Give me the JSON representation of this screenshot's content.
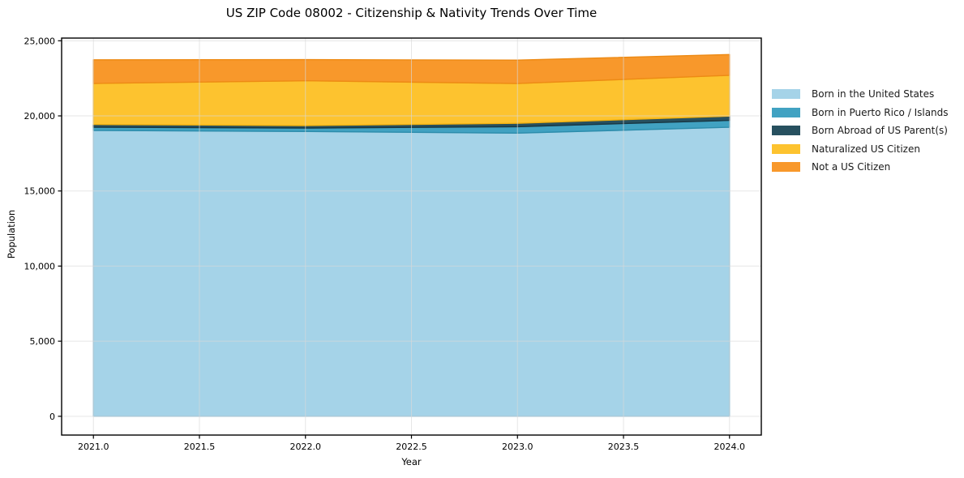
{
  "title": "US ZIP Code 08002 - Citizenship & Nativity Trends Over Time",
  "chart_data": {
    "type": "area",
    "stacked": true,
    "title": "US ZIP Code 08002 - Citizenship & Nativity Trends Over Time",
    "xlabel": "Year",
    "ylabel": "Population",
    "x": [
      2021,
      2022,
      2023,
      2024
    ],
    "series": [
      {
        "name": "Born in the United States",
        "color": "#a5d3e8",
        "edge": "#84bcd8",
        "values": [
          19030,
          18960,
          18850,
          19245
        ]
      },
      {
        "name": "Born in Puerto Rico / Islands",
        "color": "#41a2c2",
        "edge": "#2c8cab",
        "values": [
          215,
          230,
          430,
          455
        ]
      },
      {
        "name": "Born Abroad of US Parent(s)",
        "color": "#27505f",
        "edge": "#183743",
        "values": [
          185,
          165,
          230,
          285
        ]
      },
      {
        "name": "Naturalized US Citizen",
        "color": "#fdc32f",
        "edge": "#f2b212",
        "values": [
          2730,
          2985,
          2645,
          2715
        ]
      },
      {
        "name": "Not a US Citizen",
        "color": "#f8982b",
        "edge": "#ed8a14",
        "values": [
          1570,
          1405,
          1555,
          1385
        ]
      }
    ],
    "totals": [
      23730,
      23745,
      23710,
      24085
    ],
    "xlim": [
      2020.85,
      2024.15
    ],
    "ylim": [
      -1250,
      25180
    ],
    "xticks": [
      2021.0,
      2021.5,
      2022.0,
      2022.5,
      2023.0,
      2023.5,
      2024.0
    ],
    "xtick_labels": [
      "2021.0",
      "2021.5",
      "2022.0",
      "2022.5",
      "2023.0",
      "2023.5",
      "2024.0"
    ],
    "yticks": [
      0,
      5000,
      10000,
      15000,
      20000,
      25000
    ],
    "ytick_labels": [
      "0",
      "5,000",
      "10,000",
      "15,000",
      "20,000",
      "25,000"
    ],
    "grid": true,
    "grid_color": "#d9d9d9",
    "frame_color": "#000000",
    "tick_text_color": "#000000",
    "legend_position": "right-outside"
  }
}
